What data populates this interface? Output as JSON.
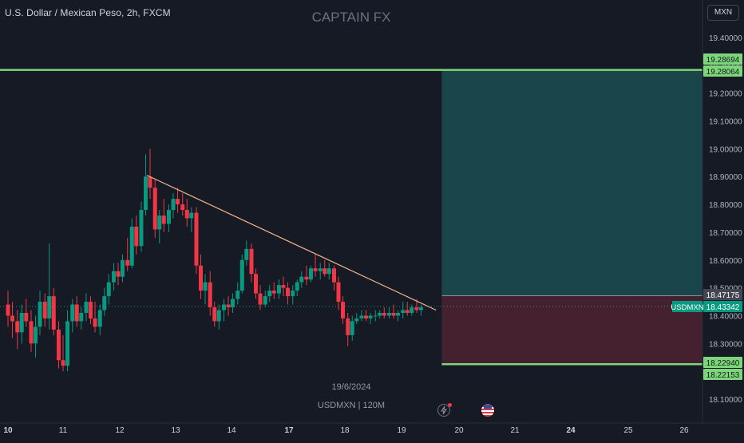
{
  "header": {
    "symbol_title": "U.S. Dollar / Mexican Peso, 2h, FXCM",
    "brand": "CAPTAIN FX",
    "currency": "MXN"
  },
  "watermark": {
    "date": "19/6/2024",
    "symbol_interval": "USDMXN | 120M"
  },
  "colors": {
    "background": "#161a25",
    "up": "#089981",
    "down": "#f23645",
    "level_line": "#7ed67a",
    "trendline": "#f5b58c",
    "target_zone": "#1a4d52",
    "stop_zone": "#4a2232"
  },
  "icons": [
    "lightning-icon",
    "us-flag-icon"
  ],
  "chart_data": {
    "type": "candlestick",
    "symbol": "USDMXN",
    "ylim": [
      18.05,
      19.5
    ],
    "y_ticks": [
      19.4,
      19.3,
      19.2,
      19.1,
      19.0,
      18.9,
      18.8,
      18.7,
      18.6,
      18.5,
      18.4,
      18.3,
      18.2,
      18.1
    ],
    "y_tick_labels": [
      "19.40000",
      "19.30000",
      "19.20000",
      "19.10000",
      "19.00000",
      "18.90000",
      "18.80000",
      "18.70000",
      "18.60000",
      "18.50000",
      "18.40000",
      "18.30000",
      "18.20000",
      "18.10000"
    ],
    "x_range": [
      10,
      27.3
    ],
    "x_ticks": [
      {
        "x": 10,
        "label": "10",
        "bold": true
      },
      {
        "x": 11,
        "label": "11",
        "bold": false
      },
      {
        "x": 12,
        "label": "12",
        "bold": false
      },
      {
        "x": 13,
        "label": "13",
        "bold": false
      },
      {
        "x": 14,
        "label": "14",
        "bold": false
      },
      {
        "x": 15,
        "label": "17",
        "bold": true
      },
      {
        "x": 16,
        "label": "18",
        "bold": false
      },
      {
        "x": 17,
        "label": "19",
        "bold": false
      },
      {
        "x": 18,
        "label": "20",
        "bold": false
      },
      {
        "x": 19,
        "label": "21",
        "bold": false
      },
      {
        "x": 20,
        "label": "24",
        "bold": true
      },
      {
        "x": 21,
        "label": "25",
        "bold": false
      },
      {
        "x": 22,
        "label": "26",
        "bold": false
      }
    ],
    "price_labels": [
      {
        "value": 19.28694,
        "label": "19.28694",
        "kind": "target"
      },
      {
        "value": 19.28064,
        "label": "19.28064",
        "kind": "target"
      },
      {
        "value": 18.47175,
        "label": "18.47175",
        "kind": "entry"
      },
      {
        "value": 18.43342,
        "label": "18.43342",
        "kind": "last",
        "tag": "USDMXN"
      },
      {
        "value": 18.2294,
        "label": "18.22940",
        "kind": "stop"
      },
      {
        "value": 18.22153,
        "label": "18.22153",
        "kind": "stop"
      }
    ],
    "horizontal_levels": [
      19.2835,
      18.2255
    ],
    "last_price": 18.43342,
    "position": {
      "x_start": 17.7,
      "x_end": 22.3,
      "entry": 18.47175,
      "target": 19.28064,
      "stop": 18.2294
    },
    "trendline": {
      "x1": 12.52,
      "y1": 18.905,
      "x2": 18.05,
      "y2": 18.42
    },
    "candles": [
      [
        10.0,
        18.44,
        18.49,
        18.36,
        18.4
      ],
      [
        10.08,
        18.4,
        18.45,
        18.32,
        18.38
      ],
      [
        10.17,
        18.38,
        18.42,
        18.28,
        18.34
      ],
      [
        10.25,
        18.34,
        18.44,
        18.3,
        18.41
      ],
      [
        10.33,
        18.41,
        18.46,
        18.36,
        18.38
      ],
      [
        10.42,
        18.38,
        18.42,
        18.27,
        18.3
      ],
      [
        10.5,
        18.3,
        18.4,
        18.25,
        18.36
      ],
      [
        10.58,
        18.36,
        18.49,
        18.33,
        18.45
      ],
      [
        10.67,
        18.45,
        18.48,
        18.36,
        18.39
      ],
      [
        10.75,
        18.39,
        18.66,
        18.35,
        18.47
      ],
      [
        10.83,
        18.47,
        18.5,
        18.33,
        18.35
      ],
      [
        10.92,
        18.35,
        18.38,
        18.21,
        18.24
      ],
      [
        11.0,
        18.24,
        18.33,
        18.2,
        18.22
      ],
      [
        11.08,
        18.22,
        18.42,
        18.2,
        18.38
      ],
      [
        11.17,
        18.38,
        18.46,
        18.34,
        18.44
      ],
      [
        11.25,
        18.44,
        18.47,
        18.36,
        18.38
      ],
      [
        11.33,
        18.38,
        18.43,
        18.35,
        18.41
      ],
      [
        11.42,
        18.41,
        18.48,
        18.38,
        18.45
      ],
      [
        11.5,
        18.45,
        18.47,
        18.37,
        18.39
      ],
      [
        11.58,
        18.39,
        18.45,
        18.34,
        18.36
      ],
      [
        11.67,
        18.36,
        18.44,
        18.33,
        18.42
      ],
      [
        11.75,
        18.42,
        18.5,
        18.4,
        18.47
      ],
      [
        11.83,
        18.47,
        18.55,
        18.44,
        18.52
      ],
      [
        11.92,
        18.52,
        18.59,
        18.49,
        18.56
      ],
      [
        12.0,
        18.56,
        18.59,
        18.51,
        18.54
      ],
      [
        12.08,
        18.54,
        18.62,
        18.52,
        18.6
      ],
      [
        12.17,
        18.6,
        18.68,
        18.56,
        18.58
      ],
      [
        12.25,
        18.58,
        18.75,
        18.57,
        18.72
      ],
      [
        12.33,
        18.72,
        18.76,
        18.62,
        18.65
      ],
      [
        12.42,
        18.65,
        18.81,
        18.63,
        18.78
      ],
      [
        12.5,
        18.78,
        18.98,
        18.76,
        18.9
      ],
      [
        12.58,
        18.9,
        19.0,
        18.82,
        18.86
      ],
      [
        12.67,
        18.86,
        18.89,
        18.68,
        18.71
      ],
      [
        12.75,
        18.71,
        18.78,
        18.66,
        18.76
      ],
      [
        12.83,
        18.76,
        18.82,
        18.7,
        18.73
      ],
      [
        12.92,
        18.73,
        18.8,
        18.7,
        18.78
      ],
      [
        13.0,
        18.78,
        18.84,
        18.75,
        18.82
      ],
      [
        13.08,
        18.82,
        18.86,
        18.77,
        18.8
      ],
      [
        13.17,
        18.8,
        18.84,
        18.76,
        18.78
      ],
      [
        13.25,
        18.78,
        18.82,
        18.72,
        18.75
      ],
      [
        13.33,
        18.75,
        18.79,
        18.7,
        18.77
      ],
      [
        13.42,
        18.77,
        18.79,
        18.55,
        18.58
      ],
      [
        13.5,
        18.58,
        18.62,
        18.46,
        18.49
      ],
      [
        13.58,
        18.49,
        18.55,
        18.44,
        18.52
      ],
      [
        13.67,
        18.52,
        18.56,
        18.4,
        18.43
      ],
      [
        13.75,
        18.43,
        18.45,
        18.36,
        18.38
      ],
      [
        13.83,
        18.38,
        18.44,
        18.35,
        18.42
      ],
      [
        13.92,
        18.42,
        18.46,
        18.38,
        18.44
      ],
      [
        14.0,
        18.44,
        18.47,
        18.4,
        18.43
      ],
      [
        14.08,
        18.43,
        18.48,
        18.41,
        18.46
      ],
      [
        14.17,
        18.46,
        18.52,
        18.44,
        18.49
      ],
      [
        14.25,
        18.49,
        18.62,
        18.48,
        18.6
      ],
      [
        14.33,
        18.6,
        18.67,
        18.58,
        18.64
      ],
      [
        14.42,
        18.64,
        18.66,
        18.52,
        18.55
      ],
      [
        14.5,
        18.55,
        18.57,
        18.46,
        18.48
      ],
      [
        14.58,
        18.48,
        18.51,
        18.42,
        18.44
      ],
      [
        14.67,
        18.44,
        18.49,
        18.43,
        18.47
      ],
      [
        14.75,
        18.47,
        18.51,
        18.45,
        18.49
      ],
      [
        14.83,
        18.49,
        18.52,
        18.46,
        18.48
      ],
      [
        14.92,
        18.48,
        18.53,
        18.46,
        18.51
      ],
      [
        15.0,
        18.51,
        18.54,
        18.47,
        18.5
      ],
      [
        15.08,
        18.5,
        18.52,
        18.44,
        18.47
      ],
      [
        15.17,
        18.47,
        18.51,
        18.44,
        18.49
      ],
      [
        15.25,
        18.49,
        18.53,
        18.47,
        18.52
      ],
      [
        15.33,
        18.52,
        18.56,
        18.5,
        18.54
      ],
      [
        15.42,
        18.54,
        18.58,
        18.51,
        18.53
      ],
      [
        15.5,
        18.53,
        18.58,
        18.52,
        18.57
      ],
      [
        15.58,
        18.57,
        18.62,
        18.54,
        18.56
      ],
      [
        15.67,
        18.56,
        18.59,
        18.53,
        18.57
      ],
      [
        15.75,
        18.57,
        18.6,
        18.54,
        18.55
      ],
      [
        15.83,
        18.55,
        18.59,
        18.53,
        18.57
      ],
      [
        15.92,
        18.57,
        18.58,
        18.49,
        18.52
      ],
      [
        16.0,
        18.52,
        18.54,
        18.42,
        18.45
      ],
      [
        16.08,
        18.45,
        18.47,
        18.37,
        18.39
      ],
      [
        16.17,
        18.39,
        18.41,
        18.29,
        18.33
      ],
      [
        16.25,
        18.33,
        18.4,
        18.31,
        18.38
      ],
      [
        16.33,
        18.38,
        18.41,
        18.37,
        18.39
      ],
      [
        16.42,
        18.39,
        18.42,
        18.38,
        18.4
      ],
      [
        16.5,
        18.4,
        18.42,
        18.38,
        18.39
      ],
      [
        16.58,
        18.39,
        18.41,
        18.37,
        18.4
      ],
      [
        16.67,
        18.4,
        18.42,
        18.38,
        18.4
      ],
      [
        16.75,
        18.4,
        18.42,
        18.39,
        18.41
      ],
      [
        16.83,
        18.41,
        18.43,
        18.39,
        18.4
      ],
      [
        16.92,
        18.4,
        18.43,
        18.39,
        18.41
      ],
      [
        17.0,
        18.41,
        18.44,
        18.39,
        18.4
      ],
      [
        17.08,
        18.4,
        18.42,
        18.38,
        18.41
      ],
      [
        17.17,
        18.41,
        18.45,
        18.39,
        18.42
      ],
      [
        17.25,
        18.42,
        18.45,
        18.4,
        18.41
      ],
      [
        17.33,
        18.41,
        18.44,
        18.4,
        18.43
      ],
      [
        17.42,
        18.43,
        18.46,
        18.41,
        18.42
      ],
      [
        17.5,
        18.42,
        18.44,
        18.4,
        18.43
      ]
    ]
  }
}
